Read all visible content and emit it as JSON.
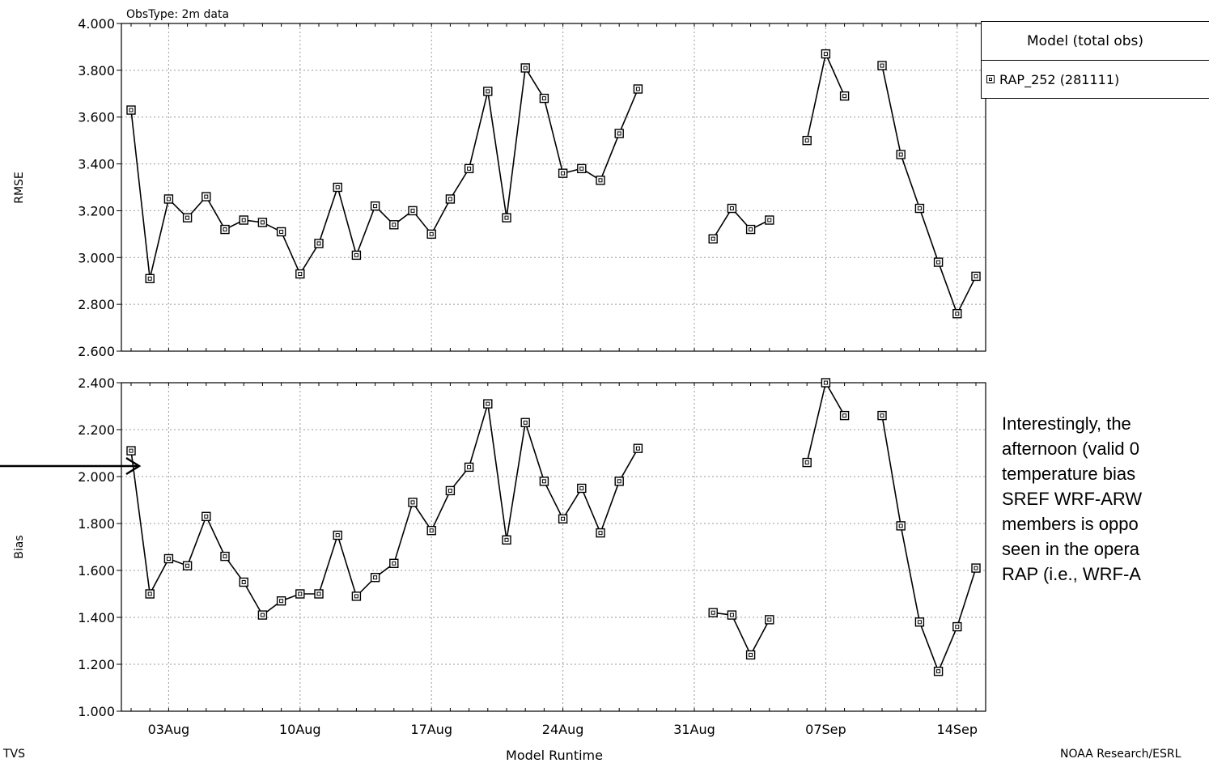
{
  "header": {
    "obs_type": "ObsType: 2m data"
  },
  "footer": {
    "left": "TVS",
    "right": "NOAA Research/ESRL",
    "xlabel": "Model Runtime"
  },
  "legend": {
    "header": "Model  (total obs)",
    "entry": "RAP_252 (281111)"
  },
  "note": "Interestingly, the\nafternoon (valid 0\ntemperature bias\nSREF WRF-ARW\nmembers is oppo\nseen in the opera\nRAP (i.e., WRF-A",
  "chart_data": [
    {
      "type": "line",
      "ylabel": "RMSE",
      "ylim": [
        2.6,
        4.0
      ],
      "y_ticks": [
        "4.000",
        "3.800",
        "3.600",
        "3.400",
        "3.200",
        "3.000",
        "2.800",
        "2.600"
      ],
      "x_ticks": [],
      "marker": "square",
      "series": [
        {
          "name": "RAP_252 (281111)",
          "points": [
            [
              0,
              3.63
            ],
            [
              1,
              2.91
            ],
            [
              2,
              3.25
            ],
            [
              3,
              3.17
            ],
            [
              4,
              3.26
            ],
            [
              5,
              3.12
            ],
            [
              6,
              3.16
            ],
            [
              7,
              3.15
            ],
            [
              8,
              3.11
            ],
            [
              9,
              2.93
            ],
            [
              10,
              3.06
            ],
            [
              11,
              3.3
            ],
            [
              12,
              3.01
            ],
            [
              13,
              3.22
            ],
            [
              14,
              3.14
            ],
            [
              15,
              3.2
            ],
            [
              16,
              3.1
            ],
            [
              17,
              3.25
            ],
            [
              18,
              3.38
            ],
            [
              19,
              3.71
            ],
            [
              20,
              3.17
            ],
            [
              21,
              3.81
            ],
            [
              22,
              3.68
            ],
            [
              23,
              3.36
            ],
            [
              24,
              3.38
            ],
            [
              25,
              3.33
            ],
            [
              26,
              3.53
            ],
            [
              27,
              3.72
            ],
            null,
            [
              31,
              3.08
            ],
            [
              32,
              3.21
            ],
            [
              33,
              3.12
            ],
            [
              34,
              3.16
            ],
            null,
            [
              36,
              3.5
            ],
            [
              37,
              3.87
            ],
            [
              38,
              3.69
            ],
            null,
            [
              40,
              3.82
            ],
            [
              41,
              3.44
            ],
            [
              42,
              3.21
            ],
            [
              43,
              2.98
            ],
            [
              44,
              2.76
            ],
            [
              45,
              2.92
            ]
          ]
        }
      ]
    },
    {
      "type": "line",
      "ylabel": "Bias",
      "ylim": [
        1.0,
        2.4
      ],
      "y_ticks": [
        "2.400",
        "2.200",
        "2.000",
        "1.800",
        "1.600",
        "1.400",
        "1.200",
        "1.000"
      ],
      "x_ticks": [
        "03Aug",
        "10Aug",
        "17Aug",
        "24Aug",
        "31Aug",
        "07Sep",
        "14Sep"
      ],
      "marker": "square",
      "series": [
        {
          "name": "RAP_252 (281111)",
          "points": [
            [
              0,
              2.11
            ],
            [
              1,
              1.5
            ],
            [
              2,
              1.65
            ],
            [
              3,
              1.62
            ],
            [
              4,
              1.83
            ],
            [
              5,
              1.66
            ],
            [
              6,
              1.55
            ],
            [
              7,
              1.41
            ],
            [
              8,
              1.47
            ],
            [
              9,
              1.5
            ],
            [
              10,
              1.5
            ],
            [
              11,
              1.75
            ],
            [
              12,
              1.49
            ],
            [
              13,
              1.57
            ],
            [
              14,
              1.63
            ],
            [
              15,
              1.89
            ],
            [
              16,
              1.77
            ],
            [
              17,
              1.94
            ],
            [
              18,
              2.04
            ],
            [
              19,
              2.31
            ],
            [
              20,
              1.73
            ],
            [
              21,
              2.23
            ],
            [
              22,
              1.98
            ],
            [
              23,
              1.82
            ],
            [
              24,
              1.95
            ],
            [
              25,
              1.76
            ],
            [
              26,
              1.98
            ],
            [
              27,
              2.12
            ],
            null,
            [
              31,
              1.42
            ],
            [
              32,
              1.41
            ],
            [
              33,
              1.24
            ],
            [
              34,
              1.39
            ],
            null,
            [
              36,
              2.06
            ],
            [
              37,
              2.4
            ],
            [
              38,
              2.26
            ],
            null,
            [
              40,
              2.26
            ],
            [
              41,
              1.79
            ],
            [
              42,
              1.38
            ],
            [
              43,
              1.17
            ],
            [
              44,
              1.36
            ],
            [
              45,
              1.61
            ]
          ]
        }
      ]
    }
  ]
}
